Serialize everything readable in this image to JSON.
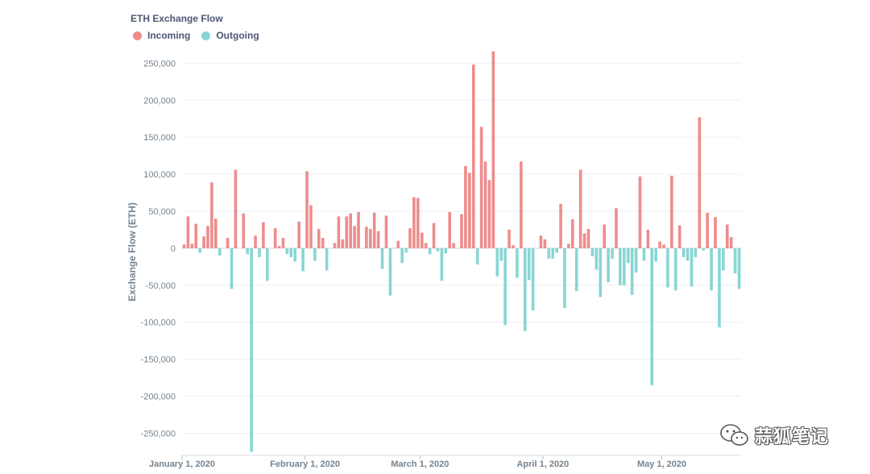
{
  "chart_data": {
    "type": "bar",
    "title": "ETH Exchange Flow",
    "ylabel": "Exchange Flow (ETH)",
    "xlabel": "",
    "ylim": [
      -280000,
      270000
    ],
    "yticks": [
      250000,
      200000,
      150000,
      100000,
      50000,
      0,
      -50000,
      -100000,
      -150000,
      -200000,
      -250000
    ],
    "ytick_labels": [
      "250,000",
      "200,000",
      "150,000",
      "100,000",
      "50,000",
      "0",
      "-50,000",
      "-100,000",
      "-150,000",
      "-200,000",
      "-250,000"
    ],
    "xlim": [
      "2020-01-01",
      "2020-05-20"
    ],
    "xticks": [
      "2020-01-01",
      "2020-02-01",
      "2020-03-01",
      "2020-04-01",
      "2020-05-01"
    ],
    "xtick_labels": [
      "January 1, 2020",
      "February 1, 2020",
      "March 1, 2020",
      "April 1, 2020",
      "May 1, 2020"
    ],
    "grid": "horizontal",
    "legend_position": "top-left",
    "series": [
      {
        "name": "Incoming",
        "color": "#ef8c8c",
        "points": [
          [
            "2020-01-01",
            5000
          ],
          [
            "2020-01-02",
            43000
          ],
          [
            "2020-01-03",
            6000
          ],
          [
            "2020-01-04",
            33000
          ],
          [
            "2020-01-06",
            16000
          ],
          [
            "2020-01-07",
            30000
          ],
          [
            "2020-01-08",
            89000
          ],
          [
            "2020-01-09",
            40000
          ],
          [
            "2020-01-12",
            14000
          ],
          [
            "2020-01-14",
            106000
          ],
          [
            "2020-01-16",
            47000
          ],
          [
            "2020-01-19",
            17000
          ],
          [
            "2020-01-21",
            35000
          ],
          [
            "2020-01-24",
            27000
          ],
          [
            "2020-01-25",
            3000
          ],
          [
            "2020-01-26",
            14000
          ],
          [
            "2020-01-30",
            36000
          ],
          [
            "2020-02-01",
            104000
          ],
          [
            "2020-02-02",
            58000
          ],
          [
            "2020-02-04",
            26000
          ],
          [
            "2020-02-05",
            14000
          ],
          [
            "2020-02-08",
            7000
          ],
          [
            "2020-02-09",
            43000
          ],
          [
            "2020-02-10",
            12000
          ],
          [
            "2020-02-11",
            43000
          ],
          [
            "2020-02-12",
            47000
          ],
          [
            "2020-02-13",
            30000
          ],
          [
            "2020-02-14",
            49000
          ],
          [
            "2020-02-16",
            29000
          ],
          [
            "2020-02-17",
            26000
          ],
          [
            "2020-02-18",
            48000
          ],
          [
            "2020-02-19",
            23000
          ],
          [
            "2020-02-21",
            44000
          ],
          [
            "2020-02-24",
            10000
          ],
          [
            "2020-02-27",
            27000
          ],
          [
            "2020-02-28",
            69000
          ],
          [
            "2020-02-29",
            68000
          ],
          [
            "2020-03-01",
            21000
          ],
          [
            "2020-03-02",
            7000
          ],
          [
            "2020-03-04",
            34000
          ],
          [
            "2020-03-08",
            49000
          ],
          [
            "2020-03-09",
            7000
          ],
          [
            "2020-03-11",
            46000
          ],
          [
            "2020-03-12",
            111000
          ],
          [
            "2020-03-13",
            102000
          ],
          [
            "2020-03-14",
            248000
          ],
          [
            "2020-03-16",
            164000
          ],
          [
            "2020-03-17",
            117000
          ],
          [
            "2020-03-18",
            92000
          ],
          [
            "2020-03-19",
            266000
          ],
          [
            "2020-03-23",
            25000
          ],
          [
            "2020-03-24",
            4000
          ],
          [
            "2020-03-26",
            117000
          ],
          [
            "2020-03-31",
            17000
          ],
          [
            "2020-04-01",
            12000
          ],
          [
            "2020-04-05",
            60000
          ],
          [
            "2020-04-07",
            6000
          ],
          [
            "2020-04-08",
            39000
          ],
          [
            "2020-04-10",
            106000
          ],
          [
            "2020-04-11",
            20000
          ],
          [
            "2020-04-12",
            26000
          ],
          [
            "2020-04-16",
            32000
          ],
          [
            "2020-04-19",
            54000
          ],
          [
            "2020-04-25",
            97000
          ],
          [
            "2020-04-27",
            25000
          ],
          [
            "2020-04-30",
            9000
          ],
          [
            "2020-05-01",
            5000
          ],
          [
            "2020-05-03",
            98000
          ],
          [
            "2020-05-05",
            31000
          ],
          [
            "2020-05-10",
            177000
          ],
          [
            "2020-05-12",
            48000
          ],
          [
            "2020-05-14",
            42000
          ],
          [
            "2020-05-17",
            32000
          ],
          [
            "2020-05-18",
            15000
          ]
        ]
      },
      {
        "name": "Outgoing",
        "color": "#88d6d4",
        "points": [
          [
            "2020-01-05",
            -6000
          ],
          [
            "2020-01-10",
            -10000
          ],
          [
            "2020-01-13",
            -55000
          ],
          [
            "2020-01-17",
            -8000
          ],
          [
            "2020-01-18",
            -275000
          ],
          [
            "2020-01-20",
            -12000
          ],
          [
            "2020-01-22",
            -44000
          ],
          [
            "2020-01-27",
            -8000
          ],
          [
            "2020-01-28",
            -12000
          ],
          [
            "2020-01-29",
            -18000
          ],
          [
            "2020-01-31",
            -31000
          ],
          [
            "2020-02-03",
            -17000
          ],
          [
            "2020-02-06",
            -30000
          ],
          [
            "2020-02-20",
            -28000
          ],
          [
            "2020-02-22",
            -64000
          ],
          [
            "2020-02-25",
            -20000
          ],
          [
            "2020-02-26",
            -6000
          ],
          [
            "2020-03-03",
            -8000
          ],
          [
            "2020-03-05",
            -4000
          ],
          [
            "2020-03-06",
            -44000
          ],
          [
            "2020-03-07",
            -7000
          ],
          [
            "2020-03-15",
            -22000
          ],
          [
            "2020-03-20",
            -38000
          ],
          [
            "2020-03-21",
            -17000
          ],
          [
            "2020-03-22",
            -104000
          ],
          [
            "2020-03-25",
            -40000
          ],
          [
            "2020-03-27",
            -112000
          ],
          [
            "2020-03-28",
            -43000
          ],
          [
            "2020-03-29",
            -84000
          ],
          [
            "2020-04-02",
            -14000
          ],
          [
            "2020-04-03",
            -14000
          ],
          [
            "2020-04-04",
            -6000
          ],
          [
            "2020-04-06",
            -81000
          ],
          [
            "2020-04-09",
            -58000
          ],
          [
            "2020-04-13",
            -11000
          ],
          [
            "2020-04-14",
            -29000
          ],
          [
            "2020-04-15",
            -66000
          ],
          [
            "2020-04-17",
            -46000
          ],
          [
            "2020-04-18",
            -14000
          ],
          [
            "2020-04-20",
            -50000
          ],
          [
            "2020-04-21",
            -50000
          ],
          [
            "2020-04-22",
            -20000
          ],
          [
            "2020-04-23",
            -63000
          ],
          [
            "2020-04-24",
            -33000
          ],
          [
            "2020-04-26",
            -17000
          ],
          [
            "2020-04-28",
            -185000
          ],
          [
            "2020-04-29",
            -18000
          ],
          [
            "2020-05-02",
            -53000
          ],
          [
            "2020-05-04",
            -57000
          ],
          [
            "2020-05-06",
            -12000
          ],
          [
            "2020-05-07",
            -17000
          ],
          [
            "2020-05-08",
            -52000
          ],
          [
            "2020-05-09",
            -12000
          ],
          [
            "2020-05-11",
            -3000
          ],
          [
            "2020-05-13",
            -57000
          ],
          [
            "2020-05-15",
            -107000
          ],
          [
            "2020-05-16",
            -30000
          ],
          [
            "2020-05-19",
            -34000
          ],
          [
            "2020-05-20",
            -55000
          ]
        ]
      }
    ]
  },
  "watermark_text": "蒜狐笔记",
  "watermark_icon": "wechat-icon"
}
